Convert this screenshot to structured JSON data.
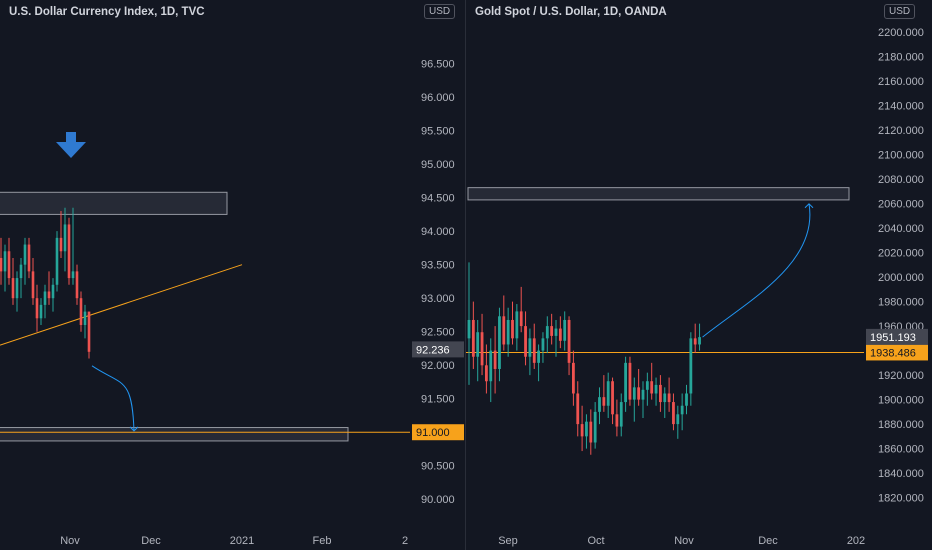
{
  "colors": {
    "background": "#131722",
    "up": "#26a69a",
    "down": "#ef5350",
    "accent_line": "#f7a21b",
    "arrow_line": "#2196f3",
    "tick_text": "#b2b5be",
    "zone_fill": "#2a2e39",
    "zone_stroke": "#9598a1"
  },
  "left": {
    "title": "U.S. Dollar Currency Index, 1D, TVC",
    "currency": "USD",
    "price_label": "92.236",
    "marker_label": "91.000"
  },
  "right": {
    "title": "Gold Spot / U.S. Dollar, 1D, OANDA",
    "currency": "USD",
    "price_label": "1951.193",
    "marker_label": "1938.486"
  },
  "chart_data": [
    {
      "type": "candlestick",
      "title": "U.S. Dollar Currency Index, 1D, TVC",
      "y_ticks": [
        "90.000",
        "90.500",
        "91.000",
        "91.500",
        "92.000",
        "92.500",
        "93.000",
        "93.500",
        "94.000",
        "94.500",
        "95.000",
        "95.500",
        "96.000",
        "96.500"
      ],
      "x_ticks": [
        "Nov",
        "Dec",
        "2021",
        "Feb",
        "2"
      ],
      "ylim": [
        89.75,
        97.3
      ],
      "last_price": 92.236,
      "horizontal_line": 91.0,
      "resistance_zone": [
        94.25,
        94.58
      ],
      "support_zone": [
        90.87,
        91.07
      ],
      "trendline": {
        "from": [
          0,
          92.3
        ],
        "to": [
          242,
          93.5
        ]
      },
      "projected_target": 91.05,
      "candles": [
        {
          "o": 93.6,
          "h": 93.9,
          "l": 93.2,
          "c": 93.4
        },
        {
          "o": 93.4,
          "h": 93.8,
          "l": 93.1,
          "c": 93.7
        },
        {
          "o": 93.7,
          "h": 93.9,
          "l": 93.2,
          "c": 93.3
        },
        {
          "o": 93.3,
          "h": 93.6,
          "l": 92.9,
          "c": 93.0
        },
        {
          "o": 93.0,
          "h": 93.4,
          "l": 92.8,
          "c": 93.3
        },
        {
          "o": 93.3,
          "h": 93.6,
          "l": 93.0,
          "c": 93.5
        },
        {
          "o": 93.5,
          "h": 93.9,
          "l": 93.2,
          "c": 93.8
        },
        {
          "o": 93.8,
          "h": 93.9,
          "l": 93.3,
          "c": 93.4
        },
        {
          "o": 93.4,
          "h": 93.6,
          "l": 92.9,
          "c": 93.0
        },
        {
          "o": 93.0,
          "h": 93.2,
          "l": 92.5,
          "c": 92.7
        },
        {
          "o": 92.7,
          "h": 93.0,
          "l": 92.6,
          "c": 92.9
        },
        {
          "o": 92.9,
          "h": 93.2,
          "l": 92.7,
          "c": 93.1
        },
        {
          "o": 93.1,
          "h": 93.4,
          "l": 92.9,
          "c": 93.0
        },
        {
          "o": 93.0,
          "h": 93.3,
          "l": 92.8,
          "c": 93.2
        },
        {
          "o": 93.2,
          "h": 94.0,
          "l": 93.1,
          "c": 93.9
        },
        {
          "o": 93.9,
          "h": 94.3,
          "l": 93.6,
          "c": 93.7
        },
        {
          "o": 93.7,
          "h": 94.35,
          "l": 93.4,
          "c": 94.1
        },
        {
          "o": 94.1,
          "h": 94.2,
          "l": 93.2,
          "c": 93.3
        },
        {
          "o": 93.3,
          "h": 94.35,
          "l": 93.2,
          "c": 93.4
        },
        {
          "o": 93.4,
          "h": 93.5,
          "l": 92.9,
          "c": 93.0
        },
        {
          "o": 93.0,
          "h": 93.1,
          "l": 92.5,
          "c": 92.6
        },
        {
          "o": 92.6,
          "h": 92.9,
          "l": 92.4,
          "c": 92.8
        },
        {
          "o": 92.8,
          "h": 92.8,
          "l": 92.1,
          "c": 92.2
        }
      ]
    },
    {
      "type": "candlestick",
      "title": "Gold Spot / U.S. Dollar, 1D, OANDA",
      "y_ticks": [
        "1820.000",
        "1840.000",
        "1860.000",
        "1880.000",
        "1900.000",
        "1920.000",
        "1940.000",
        "1960.000",
        "1980.000",
        "2000.000",
        "2020.000",
        "2040.000",
        "2060.000",
        "2080.000",
        "2100.000",
        "2120.000",
        "2140.000",
        "2160.000",
        "2180.000",
        "2200.000"
      ],
      "x_ticks": [
        "Sep",
        "Oct",
        "Nov",
        "Dec",
        "202"
      ],
      "ylim": [
        1805,
        2218
      ],
      "last_price": 1951.193,
      "horizontal_line": 1938.486,
      "resistance_zone": [
        2063,
        2073
      ],
      "projected_target": 2068,
      "candles": [
        {
          "o": 1950,
          "h": 2012,
          "l": 1912,
          "c": 1965
        },
        {
          "o": 1965,
          "h": 1980,
          "l": 1925,
          "c": 1935
        },
        {
          "o": 1935,
          "h": 1965,
          "l": 1915,
          "c": 1955
        },
        {
          "o": 1955,
          "h": 1970,
          "l": 1920,
          "c": 1928
        },
        {
          "o": 1928,
          "h": 1945,
          "l": 1905,
          "c": 1915
        },
        {
          "o": 1915,
          "h": 1950,
          "l": 1898,
          "c": 1940
        },
        {
          "o": 1940,
          "h": 1960,
          "l": 1905,
          "c": 1925
        },
        {
          "o": 1925,
          "h": 1975,
          "l": 1915,
          "c": 1968
        },
        {
          "o": 1968,
          "h": 1985,
          "l": 1940,
          "c": 1945
        },
        {
          "o": 1945,
          "h": 1975,
          "l": 1935,
          "c": 1965
        },
        {
          "o": 1965,
          "h": 1980,
          "l": 1945,
          "c": 1950
        },
        {
          "o": 1950,
          "h": 1978,
          "l": 1940,
          "c": 1972
        },
        {
          "o": 1972,
          "h": 1992,
          "l": 1955,
          "c": 1960
        },
        {
          "o": 1960,
          "h": 1972,
          "l": 1928,
          "c": 1935
        },
        {
          "o": 1935,
          "h": 1958,
          "l": 1920,
          "c": 1950
        },
        {
          "o": 1950,
          "h": 1962,
          "l": 1925,
          "c": 1930
        },
        {
          "o": 1930,
          "h": 1945,
          "l": 1915,
          "c": 1940
        },
        {
          "o": 1940,
          "h": 1955,
          "l": 1930,
          "c": 1950
        },
        {
          "o": 1950,
          "h": 1968,
          "l": 1938,
          "c": 1960
        },
        {
          "o": 1960,
          "h": 1970,
          "l": 1945,
          "c": 1952
        },
        {
          "o": 1952,
          "h": 1965,
          "l": 1935,
          "c": 1958
        },
        {
          "o": 1958,
          "h": 1968,
          "l": 1942,
          "c": 1948
        },
        {
          "o": 1948,
          "h": 1972,
          "l": 1940,
          "c": 1965
        },
        {
          "o": 1965,
          "h": 1968,
          "l": 1920,
          "c": 1930
        },
        {
          "o": 1930,
          "h": 1940,
          "l": 1895,
          "c": 1905
        },
        {
          "o": 1905,
          "h": 1915,
          "l": 1870,
          "c": 1880
        },
        {
          "o": 1880,
          "h": 1895,
          "l": 1858,
          "c": 1870
        },
        {
          "o": 1870,
          "h": 1888,
          "l": 1860,
          "c": 1882
        },
        {
          "o": 1882,
          "h": 1892,
          "l": 1855,
          "c": 1865
        },
        {
          "o": 1865,
          "h": 1898,
          "l": 1860,
          "c": 1890
        },
        {
          "o": 1890,
          "h": 1910,
          "l": 1880,
          "c": 1902
        },
        {
          "o": 1902,
          "h": 1920,
          "l": 1890,
          "c": 1895
        },
        {
          "o": 1895,
          "h": 1922,
          "l": 1885,
          "c": 1915
        },
        {
          "o": 1915,
          "h": 1918,
          "l": 1880,
          "c": 1888
        },
        {
          "o": 1888,
          "h": 1900,
          "l": 1870,
          "c": 1878
        },
        {
          "o": 1878,
          "h": 1905,
          "l": 1870,
          "c": 1898
        },
        {
          "o": 1898,
          "h": 1935,
          "l": 1890,
          "c": 1930
        },
        {
          "o": 1930,
          "h": 1935,
          "l": 1895,
          "c": 1900
        },
        {
          "o": 1900,
          "h": 1918,
          "l": 1882,
          "c": 1910
        },
        {
          "o": 1910,
          "h": 1925,
          "l": 1895,
          "c": 1900
        },
        {
          "o": 1900,
          "h": 1915,
          "l": 1885,
          "c": 1908
        },
        {
          "o": 1908,
          "h": 1922,
          "l": 1895,
          "c": 1915
        },
        {
          "o": 1915,
          "h": 1930,
          "l": 1900,
          "c": 1905
        },
        {
          "o": 1905,
          "h": 1918,
          "l": 1895,
          "c": 1912
        },
        {
          "o": 1912,
          "h": 1920,
          "l": 1890,
          "c": 1898
        },
        {
          "o": 1898,
          "h": 1910,
          "l": 1885,
          "c": 1905
        },
        {
          "o": 1905,
          "h": 1918,
          "l": 1890,
          "c": 1898
        },
        {
          "o": 1898,
          "h": 1905,
          "l": 1875,
          "c": 1880
        },
        {
          "o": 1880,
          "h": 1895,
          "l": 1868,
          "c": 1888
        },
        {
          "o": 1888,
          "h": 1905,
          "l": 1875,
          "c": 1895
        },
        {
          "o": 1895,
          "h": 1912,
          "l": 1888,
          "c": 1905
        },
        {
          "o": 1905,
          "h": 1955,
          "l": 1895,
          "c": 1950
        },
        {
          "o": 1950,
          "h": 1962,
          "l": 1938,
          "c": 1945
        },
        {
          "o": 1945,
          "h": 1962,
          "l": 1940,
          "c": 1951
        }
      ]
    }
  ]
}
